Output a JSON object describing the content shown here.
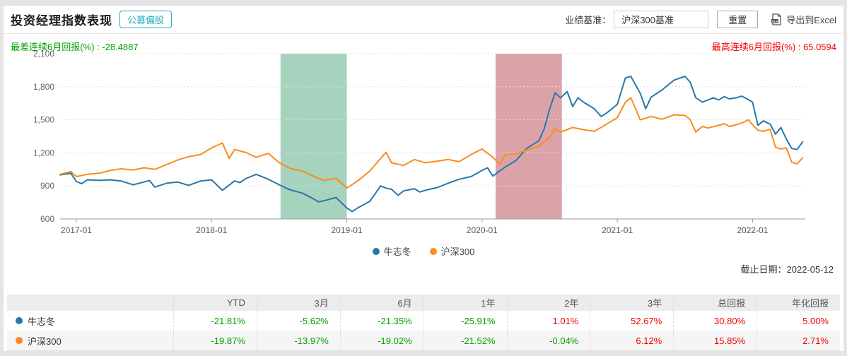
{
  "header": {
    "title": "投资经理指数表现",
    "badge": "公募偏股",
    "benchmark_label": "业绩基准：",
    "benchmark_value": "沪深300基准",
    "reset_label": "重置",
    "export_label": "导出到Excel",
    "export_icon": "xls-document-icon"
  },
  "subtitles": {
    "worst": "最差连续6月回报(%) : -28.4887",
    "best": "最高连续6月回报(%) : 65.0594"
  },
  "colors": {
    "series_blue": "#2878a8",
    "series_orange": "#fb8b1e",
    "band_green": "#a6d3bd",
    "band_red": "#dba3a8",
    "negative_text": "#00a000",
    "positive_text": "#ee0000",
    "badge_teal": "#1fadbb"
  },
  "chart_data": {
    "type": "line",
    "x_axis": {
      "ticks": [
        "2017-01",
        "2018-01",
        "2019-01",
        "2020-01",
        "2021-01",
        "2022-01"
      ],
      "tick_years": [
        2017,
        2018,
        2019,
        2020,
        2021,
        2022
      ],
      "range": [
        2016.88,
        2022.39
      ]
    },
    "y_axis": {
      "tick_labels": [
        "600",
        "900",
        "1,200",
        "1,500",
        "1,800",
        "2,100"
      ],
      "tick_values": [
        600,
        900,
        1200,
        1500,
        1800,
        2100
      ],
      "range": [
        600,
        2100
      ],
      "grid": "dotted"
    },
    "bands": [
      {
        "name": "drawdown-band-green",
        "from": 2018.51,
        "to": 2019.0,
        "color": "#a6d3bd"
      },
      {
        "name": "rally-band-red",
        "from": 2020.1,
        "to": 2020.59,
        "color": "#dba3a8"
      }
    ],
    "legend_position": "bottom-center",
    "series": [
      {
        "name": "牛志冬",
        "color": "#2878a8",
        "points": [
          [
            2016.88,
            1000
          ],
          [
            2016.96,
            1015
          ],
          [
            2017.0,
            940
          ],
          [
            2017.04,
            920
          ],
          [
            2017.08,
            955
          ],
          [
            2017.17,
            950
          ],
          [
            2017.25,
            955
          ],
          [
            2017.33,
            945
          ],
          [
            2017.42,
            910
          ],
          [
            2017.5,
            935
          ],
          [
            2017.54,
            950
          ],
          [
            2017.58,
            890
          ],
          [
            2017.67,
            925
          ],
          [
            2017.75,
            935
          ],
          [
            2017.83,
            905
          ],
          [
            2017.92,
            945
          ],
          [
            2018.0,
            955
          ],
          [
            2018.08,
            860
          ],
          [
            2018.17,
            945
          ],
          [
            2018.21,
            930
          ],
          [
            2018.25,
            965
          ],
          [
            2018.33,
            1005
          ],
          [
            2018.42,
            960
          ],
          [
            2018.5,
            910
          ],
          [
            2018.58,
            865
          ],
          [
            2018.67,
            835
          ],
          [
            2018.75,
            785
          ],
          [
            2018.79,
            755
          ],
          [
            2018.83,
            765
          ],
          [
            2018.92,
            795
          ],
          [
            2019.0,
            700
          ],
          [
            2019.04,
            668
          ],
          [
            2019.08,
            700
          ],
          [
            2019.17,
            760
          ],
          [
            2019.25,
            900
          ],
          [
            2019.29,
            880
          ],
          [
            2019.33,
            870
          ],
          [
            2019.38,
            815
          ],
          [
            2019.42,
            855
          ],
          [
            2019.5,
            875
          ],
          [
            2019.54,
            845
          ],
          [
            2019.58,
            860
          ],
          [
            2019.67,
            885
          ],
          [
            2019.75,
            925
          ],
          [
            2019.83,
            960
          ],
          [
            2019.92,
            985
          ],
          [
            2020.0,
            1040
          ],
          [
            2020.04,
            1065
          ],
          [
            2020.08,
            990
          ],
          [
            2020.17,
            1070
          ],
          [
            2020.25,
            1130
          ],
          [
            2020.33,
            1240
          ],
          [
            2020.42,
            1310
          ],
          [
            2020.46,
            1420
          ],
          [
            2020.5,
            1600
          ],
          [
            2020.54,
            1745
          ],
          [
            2020.58,
            1700
          ],
          [
            2020.63,
            1755
          ],
          [
            2020.67,
            1620
          ],
          [
            2020.71,
            1700
          ],
          [
            2020.75,
            1660
          ],
          [
            2020.83,
            1600
          ],
          [
            2020.88,
            1530
          ],
          [
            2020.92,
            1560
          ],
          [
            2021.0,
            1640
          ],
          [
            2021.06,
            1880
          ],
          [
            2021.1,
            1895
          ],
          [
            2021.17,
            1740
          ],
          [
            2021.21,
            1600
          ],
          [
            2021.25,
            1705
          ],
          [
            2021.33,
            1770
          ],
          [
            2021.42,
            1860
          ],
          [
            2021.5,
            1895
          ],
          [
            2021.54,
            1840
          ],
          [
            2021.58,
            1700
          ],
          [
            2021.63,
            1660
          ],
          [
            2021.67,
            1680
          ],
          [
            2021.71,
            1700
          ],
          [
            2021.75,
            1680
          ],
          [
            2021.79,
            1710
          ],
          [
            2021.83,
            1690
          ],
          [
            2021.88,
            1700
          ],
          [
            2021.92,
            1715
          ],
          [
            2021.96,
            1690
          ],
          [
            2022.0,
            1660
          ],
          [
            2022.04,
            1450
          ],
          [
            2022.08,
            1490
          ],
          [
            2022.13,
            1460
          ],
          [
            2022.17,
            1370
          ],
          [
            2022.21,
            1430
          ],
          [
            2022.25,
            1325
          ],
          [
            2022.29,
            1240
          ],
          [
            2022.33,
            1230
          ],
          [
            2022.37,
            1300
          ]
        ]
      },
      {
        "name": "沪深300",
        "color": "#fb8b1e",
        "points": [
          [
            2016.88,
            1005
          ],
          [
            2016.96,
            1030
          ],
          [
            2017.0,
            985
          ],
          [
            2017.08,
            1005
          ],
          [
            2017.17,
            1015
          ],
          [
            2017.25,
            1040
          ],
          [
            2017.33,
            1055
          ],
          [
            2017.42,
            1045
          ],
          [
            2017.5,
            1065
          ],
          [
            2017.58,
            1050
          ],
          [
            2017.67,
            1095
          ],
          [
            2017.75,
            1135
          ],
          [
            2017.83,
            1165
          ],
          [
            2017.92,
            1185
          ],
          [
            2018.0,
            1245
          ],
          [
            2018.08,
            1290
          ],
          [
            2018.13,
            1150
          ],
          [
            2018.17,
            1230
          ],
          [
            2018.25,
            1205
          ],
          [
            2018.33,
            1160
          ],
          [
            2018.42,
            1195
          ],
          [
            2018.5,
            1110
          ],
          [
            2018.58,
            1060
          ],
          [
            2018.67,
            1035
          ],
          [
            2018.75,
            990
          ],
          [
            2018.83,
            950
          ],
          [
            2018.92,
            970
          ],
          [
            2019.0,
            880
          ],
          [
            2019.08,
            945
          ],
          [
            2019.17,
            1035
          ],
          [
            2019.25,
            1150
          ],
          [
            2019.29,
            1205
          ],
          [
            2019.33,
            1110
          ],
          [
            2019.42,
            1085
          ],
          [
            2019.5,
            1140
          ],
          [
            2019.58,
            1110
          ],
          [
            2019.67,
            1125
          ],
          [
            2019.75,
            1140
          ],
          [
            2019.83,
            1120
          ],
          [
            2019.92,
            1185
          ],
          [
            2020.0,
            1235
          ],
          [
            2020.08,
            1160
          ],
          [
            2020.13,
            1095
          ],
          [
            2020.17,
            1180
          ],
          [
            2020.25,
            1190
          ],
          [
            2020.33,
            1225
          ],
          [
            2020.42,
            1260
          ],
          [
            2020.5,
            1340
          ],
          [
            2020.54,
            1420
          ],
          [
            2020.58,
            1390
          ],
          [
            2020.67,
            1430
          ],
          [
            2020.75,
            1410
          ],
          [
            2020.83,
            1395
          ],
          [
            2020.92,
            1460
          ],
          [
            2021.0,
            1520
          ],
          [
            2021.06,
            1660
          ],
          [
            2021.1,
            1700
          ],
          [
            2021.17,
            1500
          ],
          [
            2021.25,
            1530
          ],
          [
            2021.33,
            1505
          ],
          [
            2021.42,
            1545
          ],
          [
            2021.5,
            1540
          ],
          [
            2021.54,
            1500
          ],
          [
            2021.58,
            1390
          ],
          [
            2021.63,
            1440
          ],
          [
            2021.67,
            1425
          ],
          [
            2021.75,
            1450
          ],
          [
            2021.79,
            1465
          ],
          [
            2021.83,
            1440
          ],
          [
            2021.88,
            1455
          ],
          [
            2021.92,
            1470
          ],
          [
            2021.97,
            1500
          ],
          [
            2022.0,
            1455
          ],
          [
            2022.04,
            1405
          ],
          [
            2022.08,
            1395
          ],
          [
            2022.13,
            1415
          ],
          [
            2022.17,
            1250
          ],
          [
            2022.21,
            1235
          ],
          [
            2022.25,
            1245
          ],
          [
            2022.29,
            1115
          ],
          [
            2022.33,
            1100
          ],
          [
            2022.37,
            1155
          ]
        ]
      }
    ]
  },
  "footnote": {
    "as_of": "截止日期：2022-05-12"
  },
  "table": {
    "headers": [
      "",
      "YTD",
      "3月",
      "6月",
      "1年",
      "2年",
      "3年",
      "总回报",
      "年化回报"
    ],
    "rows": [
      {
        "name": "牛志冬",
        "dot_color": "#2878a8",
        "values": [
          "-21.81%",
          "-5.62%",
          "-21.35%",
          "-25.91%",
          "1.01%",
          "52.67%",
          "30.80%",
          "5.00%"
        ]
      },
      {
        "name": "沪深300",
        "dot_color": "#fb8b1e",
        "values": [
          "-19.87%",
          "-13.97%",
          "-19.02%",
          "-21.52%",
          "-0.04%",
          "6.12%",
          "15.85%",
          "2.71%"
        ]
      }
    ]
  }
}
